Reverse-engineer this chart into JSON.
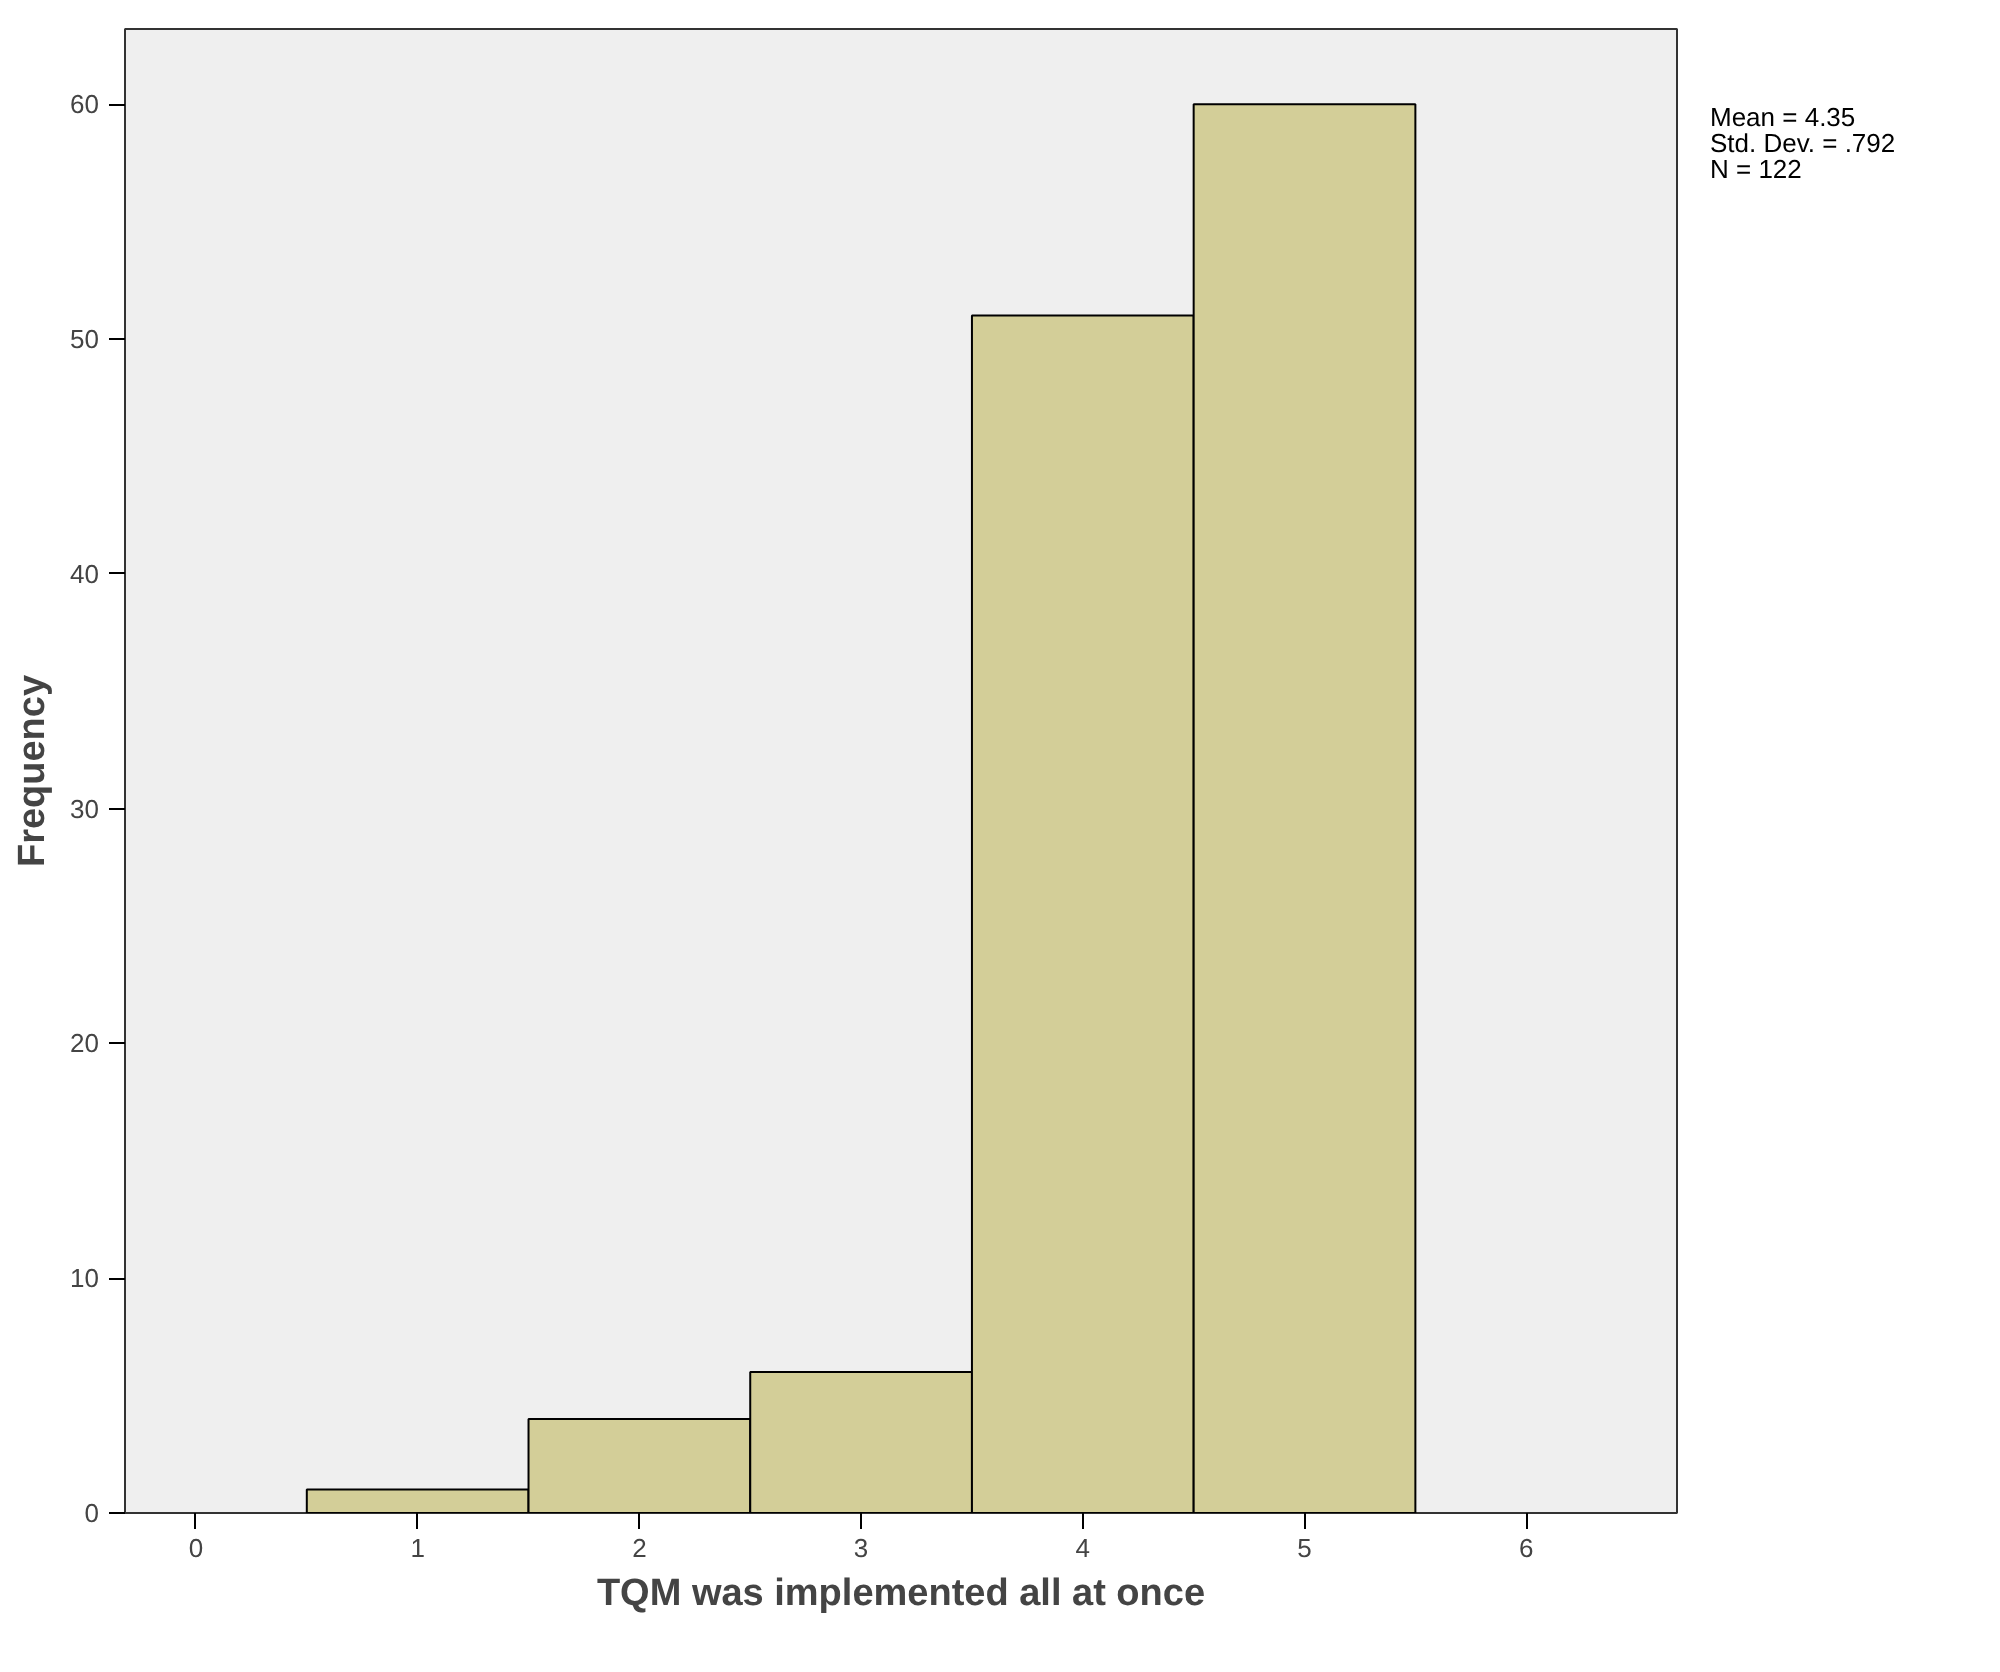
{
  "chart_data": {
    "type": "histogram",
    "xlabel": "TQM was implemented all at once",
    "ylabel": "Frequency",
    "bins": [
      0.5,
      1.5,
      2.5,
      3.5,
      4.5,
      5.5
    ],
    "values": [
      1,
      4,
      6,
      51,
      60
    ],
    "color": "#d3ce98",
    "xlim": [
      -0.32,
      6.68
    ],
    "xticks": [
      0,
      1,
      2,
      3,
      4,
      5,
      6
    ],
    "ylim": [
      0,
      63.2
    ],
    "yticks": [
      0,
      10,
      20,
      30,
      40,
      50,
      60
    ],
    "grid": false,
    "annotations": [
      "Mean = 4.35",
      "Std. Dev. = .792",
      "N = 122"
    ]
  }
}
